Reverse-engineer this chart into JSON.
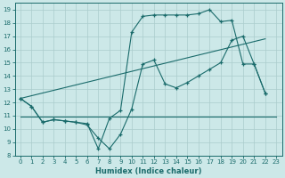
{
  "xlabel": "Humidex (Indice chaleur)",
  "background_color": "#cce8e8",
  "grid_color": "#aacccc",
  "line_color": "#1a6b6b",
  "xlim": [
    -0.5,
    23.5
  ],
  "ylim": [
    8,
    19.5
  ],
  "xticks": [
    0,
    1,
    2,
    3,
    4,
    5,
    6,
    7,
    8,
    9,
    10,
    11,
    12,
    13,
    14,
    15,
    16,
    17,
    18,
    19,
    20,
    21,
    22,
    23
  ],
  "yticks": [
    8,
    9,
    10,
    11,
    12,
    13,
    14,
    15,
    16,
    17,
    18,
    19
  ],
  "series1_x": [
    0,
    1,
    2,
    3,
    4,
    5,
    6,
    7,
    8,
    9,
    10,
    11,
    12,
    13,
    14,
    15,
    16,
    17,
    18,
    19,
    20,
    21,
    22
  ],
  "series1_y": [
    12.3,
    11.7,
    10.5,
    10.7,
    10.6,
    10.5,
    10.4,
    8.5,
    10.8,
    11.4,
    17.3,
    18.5,
    18.6,
    18.6,
    18.6,
    18.6,
    18.7,
    19.0,
    18.1,
    18.2,
    14.9,
    14.9,
    12.7
  ],
  "series2_x": [
    0,
    1,
    2,
    3,
    4,
    5,
    6,
    7,
    8,
    9,
    10,
    11,
    12,
    13,
    14,
    15,
    16,
    17,
    18,
    19,
    20,
    21,
    22
  ],
  "series2_y": [
    12.3,
    11.7,
    10.5,
    10.7,
    10.6,
    10.5,
    10.3,
    9.3,
    8.5,
    9.6,
    11.5,
    14.9,
    15.2,
    13.4,
    13.1,
    13.5,
    14.0,
    14.5,
    15.0,
    16.7,
    17.0,
    14.9,
    12.7
  ],
  "series3_x": [
    0,
    23
  ],
  "series3_y": [
    10.9,
    10.9
  ],
  "series4_x": [
    0,
    22
  ],
  "series4_y": [
    12.3,
    16.8
  ]
}
